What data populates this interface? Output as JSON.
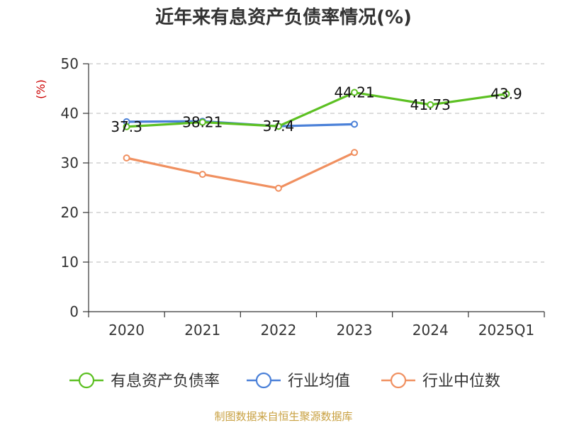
{
  "chart_data": {
    "type": "line",
    "title": "近年来有息资产负债率情况(%)",
    "ylabel": "(%)",
    "xlabel": "",
    "categories": [
      "2020",
      "2021",
      "2022",
      "2023",
      "2024",
      "2025Q1"
    ],
    "ylim": [
      0,
      50
    ],
    "yticks": [
      0,
      10,
      20,
      30,
      40,
      50
    ],
    "grid": "horizontal-dashed",
    "legend_position": "bottom",
    "series": [
      {
        "name": "有息资产负债率",
        "color": "#5cc022",
        "values": [
          37.3,
          38.21,
          37.4,
          44.21,
          41.73,
          43.9
        ],
        "labels": [
          "37.3",
          "38.21",
          "37.4",
          "44.21",
          "41.73",
          "43.9"
        ]
      },
      {
        "name": "行业均值",
        "color": "#4a80d8",
        "values": [
          38.3,
          38.4,
          37.4,
          37.8,
          null,
          null
        ]
      },
      {
        "name": "行业中位数",
        "color": "#f09060",
        "values": [
          31.0,
          27.7,
          24.9,
          32.1,
          null,
          null
        ]
      }
    ]
  },
  "footer": {
    "source": "制图数据来自恒生聚源数据库"
  }
}
